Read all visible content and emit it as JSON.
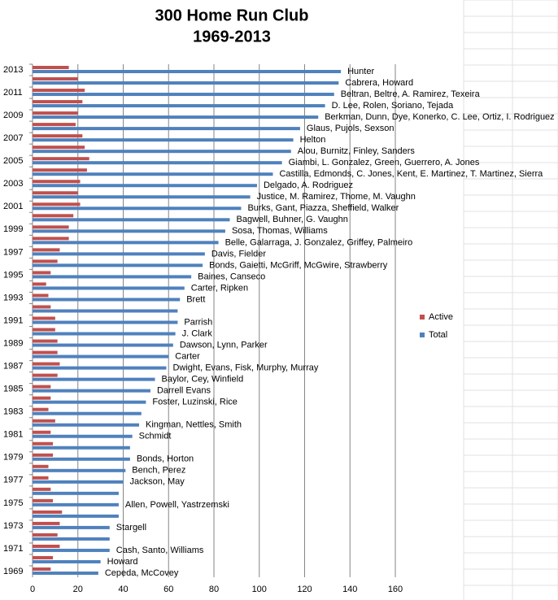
{
  "chart_data": {
    "type": "bar",
    "orientation": "horizontal",
    "title": "300 Home Run Club",
    "subtitle": "1969-2013",
    "categories": [
      "2013",
      null,
      "2011",
      null,
      "2009",
      null,
      "2007",
      null,
      "2005",
      null,
      "2003",
      null,
      "2001",
      null,
      "1999",
      null,
      "1997",
      null,
      "1995",
      null,
      "1993",
      null,
      "1991",
      null,
      "1989",
      null,
      "1987",
      null,
      "1985",
      null,
      "1983",
      null,
      "1981",
      null,
      "1979",
      null,
      "1977",
      null,
      "1975",
      null,
      "1973",
      null,
      "1971",
      null,
      "1969"
    ],
    "series": [
      {
        "name": "Active",
        "color": "#c0504d",
        "values": [
          16,
          20,
          23,
          22,
          20,
          19,
          22,
          23,
          25,
          24,
          21,
          20,
          21,
          18,
          16,
          16,
          12,
          11,
          8,
          6,
          7,
          8,
          10,
          10,
          11,
          11,
          12,
          11,
          8,
          8,
          7,
          10,
          8,
          9,
          9,
          7,
          7,
          8,
          9,
          13,
          12,
          11,
          12,
          9,
          8
        ]
      },
      {
        "name": "Total",
        "color": "#4f81bd",
        "values": [
          136,
          135,
          133,
          129,
          126,
          118,
          115,
          114,
          110,
          106,
          99,
          96,
          92,
          87,
          85,
          82,
          76,
          75,
          70,
          67,
          65,
          64,
          64,
          63,
          62,
          60,
          59,
          54,
          52,
          50,
          48,
          47,
          44,
          43,
          43,
          41,
          40,
          38,
          38,
          38,
          34,
          34,
          34,
          30,
          29
        ]
      }
    ],
    "annotations": [
      "Hunter",
      "Cabrera, Howard",
      "Beltran, Beltre, A. Ramirez, Texeira",
      "D. Lee, Rolen, Soriano, Tejada",
      "Berkman, Dunn, Dye, Konerko, C. Lee, Ortiz, I. Rodriguez",
      "Glaus, Pujols, Sexson",
      "Helton",
      "Alou, Burnitz, Finley, Sanders",
      "Giambi, L. Gonzalez, Green, Guerrero, A. Jones",
      "Castilla, Edmonds, C. Jones, Kent, E. Martinez, T. Martinez, Sierra",
      "Delgado, A. Rodriguez",
      "Justice, M. Ramirez, Thome, M. Vaughn",
      "Burks, Gant, Piazza, Sheffield, Walker",
      "Bagwell, Buhner, G. Vaughn",
      "Sosa, Thomas, Williams",
      "Belle, Galarraga, J. Gonzalez, Griffey, Palmeiro",
      "Davis, Fielder",
      "Bonds, Gaietti, McGriff, McGwire, Strawberry",
      "Baines, Canseco",
      "Carter, Ripken",
      "Brett",
      null,
      "Parrish",
      "J. Clark",
      "Dawson, Lynn, Parker",
      "Carter",
      "Dwight, Evans, Fisk, Murphy, Murray",
      "Baylor, Cey, Winfield",
      "Darrell Evans",
      "Foster, Luzinski, Rice",
      null,
      "Kingman, Nettles, Smith",
      "Schmidt",
      null,
      "Bonds, Horton",
      "Bench, Perez",
      "Jackson, May",
      null,
      "Allen, Powell, Yastrzemski",
      null,
      "Stargell",
      null,
      "Cash, Santo, Williams",
      "Howard",
      "Cepeda, McCovey"
    ],
    "xlim": [
      0,
      160
    ],
    "xticks": [
      0,
      20,
      40,
      60,
      80,
      100,
      120,
      140,
      160
    ],
    "grid": true,
    "legend": "right"
  }
}
